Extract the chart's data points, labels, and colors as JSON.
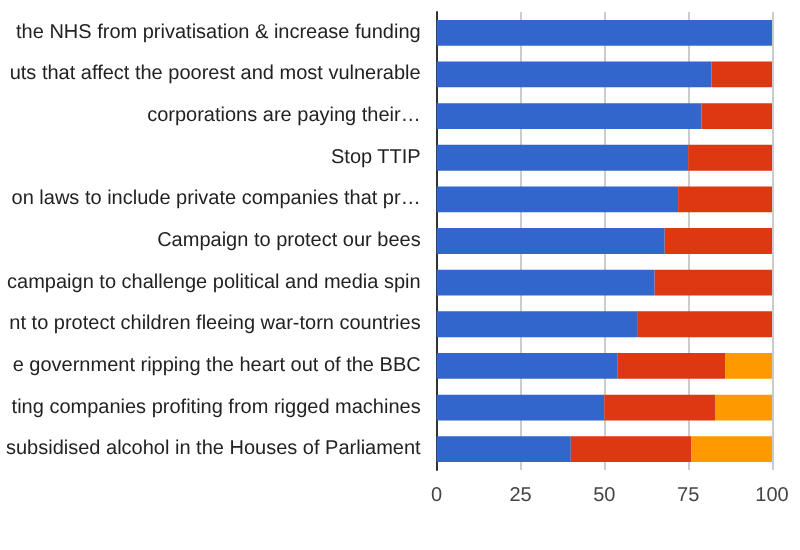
{
  "chart_data": {
    "type": "bar",
    "orientation": "horizontal",
    "stacked": true,
    "categories": [
      "the NHS from privatisation & increase funding",
      "uts that affect the poorest and most vulnerable",
      "corporations are paying their…",
      "Stop TTIP",
      "on laws to include private companies that pr…",
      "Campaign to protect our bees",
      "campaign to challenge political and media spin",
      "nt to protect children fleeing war-torn countries",
      "e government ripping the heart out of the BBC",
      "ting companies profiting from rigged machines",
      "subsidised alcohol in the Houses of Parliament"
    ],
    "series": [
      {
        "color": "#3366cc",
        "values": [
          100,
          82,
          79,
          75,
          72,
          68,
          65,
          60,
          54,
          50,
          40
        ]
      },
      {
        "color": "#dc3912",
        "values": [
          0,
          18,
          21,
          25,
          28,
          32,
          35,
          40,
          32,
          33,
          36
        ]
      },
      {
        "color": "#ff9900",
        "values": [
          0,
          0,
          0,
          0,
          0,
          0,
          0,
          0,
          14,
          17,
          24
        ]
      }
    ],
    "xlim": [
      0,
      100
    ],
    "xticks": [
      0,
      25,
      50,
      75,
      100
    ],
    "grid": "x"
  }
}
